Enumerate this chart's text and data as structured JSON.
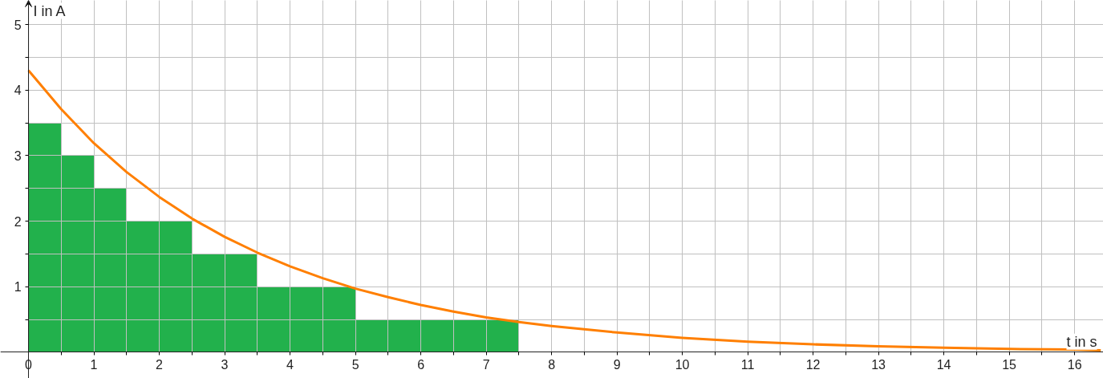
{
  "chart_data": {
    "type": "histogram",
    "xlabel": "t in s",
    "ylabel": "I in A",
    "bins": [
      0,
      0.5,
      1,
      1.5,
      2,
      2.5,
      3,
      3.5,
      4,
      4.5,
      5,
      5.5,
      6,
      6.5,
      7,
      7.5
    ],
    "values": [
      3.5,
      3,
      2.5,
      2,
      2,
      1.5,
      1.5,
      1,
      1,
      1,
      0.5,
      0.5,
      0.5,
      0.5,
      0.5
    ],
    "color": "#22b14c",
    "series": [
      {
        "type": "line",
        "color": "#ff7f00",
        "x": [
          0,
          0.5,
          1,
          1.5,
          2,
          2.5,
          3,
          3.5,
          4,
          4.5,
          5,
          5.5,
          6,
          6.5,
          7,
          7.5,
          8,
          9,
          10,
          11,
          12,
          13,
          14,
          15,
          16,
          16.4
        ],
        "values": [
          4.3,
          3.71,
          3.19,
          2.75,
          2.37,
          2.04,
          1.76,
          1.52,
          1.31,
          1.13,
          0.97,
          0.84,
          0.72,
          0.62,
          0.53,
          0.46,
          0.4,
          0.3,
          0.22,
          0.16,
          0.12,
          0.09,
          0.07,
          0.05,
          0.04,
          0.03
        ]
      }
    ],
    "xlim": [
      -0.43,
      16.44
    ],
    "ylim": [
      -0.4,
      5.37
    ],
    "xticks": [
      0,
      {
        "value": 0.5,
        "label": null
      },
      1,
      {
        "value": 1.5,
        "label": null
      },
      2,
      {
        "value": 2.5,
        "label": null
      },
      3,
      {
        "value": 3.5,
        "label": null
      },
      4,
      {
        "value": 4.5,
        "label": null
      },
      5,
      {
        "value": 5.5,
        "label": null
      },
      6,
      {
        "value": 6.5,
        "label": null
      },
      7,
      {
        "value": 7.5,
        "label": null
      },
      8,
      {
        "value": 8.5,
        "label": null
      },
      9,
      {
        "value": 9.5,
        "label": null
      },
      10,
      {
        "value": 10.5,
        "label": null
      },
      11,
      {
        "value": 11.5,
        "label": null
      },
      12,
      {
        "value": 12.5,
        "label": null
      },
      13,
      {
        "value": 13.5,
        "label": null
      },
      14,
      {
        "value": 14.5,
        "label": null
      },
      15,
      {
        "value": 15.5,
        "label": null
      },
      16
    ],
    "yticks": [
      {
        "value": 0.5,
        "label": null
      },
      1,
      {
        "value": 1.5,
        "label": null
      },
      2,
      {
        "value": 2.5,
        "label": null
      },
      3,
      {
        "value": 3.5,
        "label": null
      },
      4,
      {
        "value": 4.5,
        "label": null
      },
      5
    ],
    "grid": true
  }
}
